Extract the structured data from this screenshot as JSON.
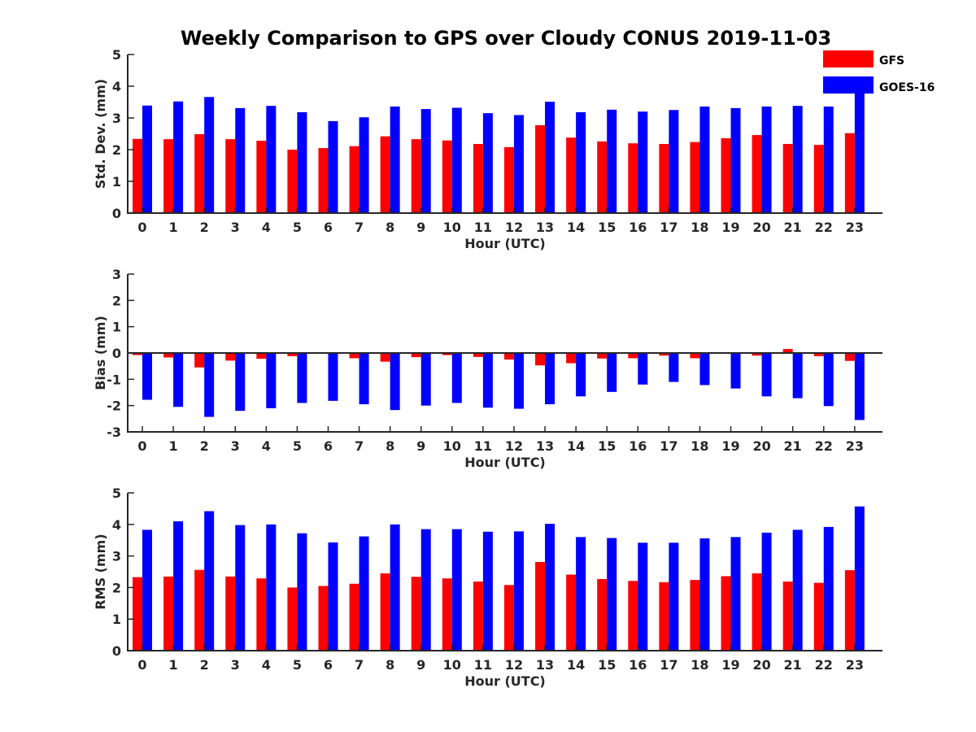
{
  "chart_data": {
    "title": "Weekly Comparison to GPS over Cloudy CONUS 2019-11-03",
    "type": "bar",
    "legend": {
      "placement": "top-right",
      "entries": [
        {
          "name": "GFS",
          "color": "#ff0000"
        },
        {
          "name": "GOES-16",
          "color": "#0000ff"
        }
      ]
    },
    "panels": [
      {
        "type": "bar",
        "ylabel": "Std. Dev. (mm)",
        "xlabel": "Hour (UTC)",
        "ylim": [
          0,
          5
        ],
        "yticks": [
          0,
          1,
          2,
          3,
          4,
          5
        ],
        "categories": [
          "0",
          "1",
          "2",
          "3",
          "4",
          "5",
          "6",
          "7",
          "8",
          "9",
          "10",
          "11",
          "12",
          "13",
          "14",
          "15",
          "16",
          "17",
          "18",
          "19",
          "20",
          "21",
          "22",
          "23"
        ],
        "series": [
          {
            "name": "GFS",
            "color": "#ff0000",
            "values": [
              2.34,
              2.33,
              2.49,
              2.33,
              2.28,
              2.0,
              2.05,
              2.11,
              2.42,
              2.33,
              2.29,
              2.18,
              2.08,
              2.77,
              2.38,
              2.26,
              2.2,
              2.18,
              2.24,
              2.36,
              2.46,
              2.18,
              2.15,
              2.52
            ]
          },
          {
            "name": "GOES-16",
            "color": "#0000ff",
            "values": [
              3.39,
              3.52,
              3.66,
              3.31,
              3.38,
              3.18,
              2.9,
              3.02,
              3.36,
              3.28,
              3.32,
              3.15,
              3.09,
              3.51,
              3.18,
              3.26,
              3.2,
              3.25,
              3.36,
              3.31,
              3.36,
              3.38,
              3.36,
              3.9
            ]
          }
        ]
      },
      {
        "type": "bar",
        "ylabel": "Bias (mm)",
        "xlabel": "Hour (UTC)",
        "ylim": [
          -3,
          3
        ],
        "yticks": [
          -3,
          -2,
          -1,
          0,
          1,
          2,
          3
        ],
        "categories": [
          "0",
          "1",
          "2",
          "3",
          "4",
          "5",
          "6",
          "7",
          "8",
          "9",
          "10",
          "11",
          "12",
          "13",
          "14",
          "15",
          "16",
          "17",
          "18",
          "19",
          "20",
          "21",
          "22",
          "23"
        ],
        "series": [
          {
            "name": "GFS",
            "color": "#ff0000",
            "values": [
              -0.08,
              -0.17,
              -0.55,
              -0.29,
              -0.22,
              -0.12,
              -0.03,
              -0.2,
              -0.33,
              -0.16,
              -0.08,
              -0.15,
              -0.25,
              -0.47,
              -0.39,
              -0.21,
              -0.2,
              -0.1,
              -0.2,
              -0.03,
              -0.1,
              0.15,
              -0.12,
              -0.3
            ]
          },
          {
            "name": "GOES-16",
            "color": "#0000ff",
            "values": [
              -1.78,
              -2.05,
              -2.43,
              -2.2,
              -2.1,
              -1.9,
              -1.82,
              -1.95,
              -2.17,
              -2.0,
              -1.9,
              -2.08,
              -2.12,
              -1.95,
              -1.65,
              -1.48,
              -1.2,
              -1.1,
              -1.22,
              -1.35,
              -1.65,
              -1.72,
              -2.02,
              -2.55
            ]
          }
        ]
      },
      {
        "type": "bar",
        "ylabel": "RMS (mm)",
        "xlabel": "Hour (UTC)",
        "ylim": [
          0,
          5
        ],
        "yticks": [
          0,
          1,
          2,
          3,
          4,
          5
        ],
        "categories": [
          "0",
          "1",
          "2",
          "3",
          "4",
          "5",
          "6",
          "7",
          "8",
          "9",
          "10",
          "11",
          "12",
          "13",
          "14",
          "15",
          "16",
          "17",
          "18",
          "19",
          "20",
          "21",
          "22",
          "23"
        ],
        "series": [
          {
            "name": "GFS",
            "color": "#ff0000",
            "values": [
              2.33,
              2.35,
              2.56,
              2.35,
              2.29,
              2.0,
              2.05,
              2.12,
              2.45,
              2.34,
              2.29,
              2.19,
              2.08,
              2.81,
              2.41,
              2.27,
              2.21,
              2.17,
              2.24,
              2.36,
              2.45,
              2.19,
              2.15,
              2.55
            ]
          },
          {
            "name": "GOES-16",
            "color": "#0000ff",
            "values": [
              3.83,
              4.1,
              4.42,
              3.98,
              4.0,
              3.72,
              3.43,
              3.62,
              4.0,
              3.85,
              3.85,
              3.77,
              3.78,
              4.02,
              3.6,
              3.57,
              3.42,
              3.42,
              3.56,
              3.6,
              3.74,
              3.83,
              3.92,
              4.57
            ]
          }
        ]
      }
    ]
  }
}
